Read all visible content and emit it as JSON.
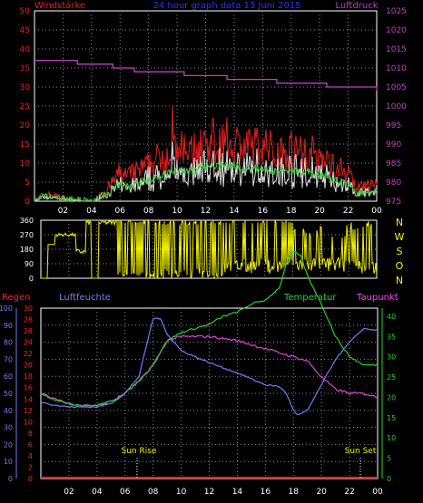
{
  "colors": {
    "bg": "#000000",
    "grid": "#8a8a8a",
    "axis": "#ffffff",
    "wind_max": "#e02020",
    "wind_avg": "#e0e0e0",
    "wind_mean": "#40d040",
    "pressure": "#c040c0",
    "winddir": "#f0f000",
    "humidity": "#7878f8",
    "temperature": "#28d028",
    "dewpoint": "#e040e0",
    "rain": "#ff2020"
  },
  "top": {
    "title_left": "Windstärke",
    "title_center": "24 hour graph data  13 Juni 2015",
    "title_right": "Luftdruck"
  },
  "dir_labels": [
    "N",
    "W",
    "S",
    "O",
    "N"
  ],
  "bottom": {
    "label_regen": "Regen",
    "label_luftfeuchte": "Luftfeuchte",
    "label_temperatur": "Temperatur",
    "label_taupunkt": "Taupunkt",
    "sunrise": "Sun Rise",
    "sunset": "Sun Set"
  },
  "chart_data": [
    {
      "type": "line",
      "name": "wind-pressure",
      "x_ticks": [
        "02",
        "04",
        "06",
        "08",
        "10",
        "12",
        "14",
        "16",
        "18",
        "20",
        "22",
        "00"
      ],
      "y_left_ticks": [
        "0",
        "5",
        "10",
        "15",
        "20",
        "25",
        "30",
        "35",
        "40",
        "45",
        "50"
      ],
      "y_left_range": [
        0,
        50
      ],
      "y_right_ticks": [
        "975",
        "980",
        "985",
        "990",
        "995",
        "1000",
        "1005",
        "1010",
        "1015",
        "1020",
        "1025"
      ],
      "y_right_range": [
        975,
        1025
      ],
      "pressure_series": {
        "x": [
          0,
          3,
          5.5,
          6.8,
          7,
          9,
          10.5,
          12,
          13.5,
          15,
          17,
          19,
          20.5,
          22.5,
          24
        ],
        "y": [
          1012,
          1011,
          1010,
          1010,
          1009,
          1009,
          1008,
          1008,
          1007,
          1007,
          1006,
          1006,
          1005,
          1005,
          1004
        ]
      },
      "wind_max_profile": {
        "x": [
          0,
          0.6,
          1,
          3.5,
          4.3,
          4.5,
          5,
          6,
          6.5,
          8,
          9,
          10,
          11,
          12,
          13,
          14,
          15,
          16,
          17,
          18,
          19,
          20,
          21,
          22,
          22.5,
          23,
          24
        ],
        "y": [
          0,
          2,
          2,
          0,
          0,
          2,
          3,
          8,
          7,
          10,
          13,
          15,
          14,
          17,
          17,
          17,
          15,
          16,
          14,
          15,
          14,
          13,
          10,
          8,
          4,
          4,
          5
        ]
      }
    },
    {
      "type": "line",
      "name": "wind-direction",
      "y_ticks": [
        "360",
        "270",
        "180",
        "90",
        "0"
      ],
      "y_range": [
        0,
        360
      ]
    },
    {
      "type": "line",
      "name": "humidity-temperature",
      "x_ticks": [
        "02",
        "04",
        "06",
        "08",
        "10",
        "12",
        "14",
        "16",
        "18",
        "20",
        "22",
        "00"
      ],
      "y_humidity_ticks": [
        "0",
        "10",
        "20",
        "30",
        "40",
        "50",
        "60",
        "70",
        "80",
        "90",
        "100"
      ],
      "y_humidity_range": [
        0,
        100
      ],
      "y_rain_ticks": [
        "0",
        "2",
        "4",
        "6",
        "8",
        "10",
        "12",
        "14",
        "16",
        "18",
        "20",
        "22",
        "24",
        "26",
        "28",
        "30"
      ],
      "y_rain_range": [
        0,
        30
      ],
      "y_temp_ticks": [
        "0",
        "5",
        "10",
        "15",
        "20",
        "25",
        "30",
        "35",
        "40"
      ],
      "y_temp_range": [
        0,
        42
      ],
      "humidity": {
        "x": [
          0,
          1,
          2,
          3,
          4,
          5,
          6,
          7,
          8,
          8.5,
          9,
          10,
          12,
          14,
          16,
          17,
          17.5,
          18,
          18.3,
          19,
          20,
          21,
          22,
          23,
          24
        ],
        "y": [
          45,
          43,
          42,
          42,
          42,
          44,
          50,
          60,
          94,
          94,
          85,
          75,
          68,
          62,
          55,
          54,
          50,
          40,
          37,
          40,
          55,
          70,
          80,
          88,
          87
        ]
      },
      "temperature": {
        "x": [
          0,
          1,
          2,
          3,
          4,
          5,
          6,
          7,
          8,
          9,
          10,
          11,
          12,
          13,
          14,
          15,
          16,
          17,
          17.6,
          18,
          18.5,
          19,
          20,
          21,
          22,
          23,
          24
        ],
        "y": [
          21,
          19.5,
          18.5,
          18,
          18,
          19,
          21,
          24,
          28,
          34,
          36,
          37,
          38,
          40,
          41,
          43,
          44,
          47,
          54,
          56,
          55,
          50,
          43,
          35,
          30,
          28,
          28
        ]
      },
      "dewpoint": {
        "x": [
          0,
          1,
          2,
          3,
          4,
          5,
          6,
          7,
          8,
          9,
          10,
          12,
          14,
          16,
          17,
          18,
          19,
          20,
          21,
          22,
          23,
          24
        ],
        "y": [
          21,
          19.5,
          18.5,
          18,
          18,
          19,
          21,
          24,
          28,
          34,
          35,
          35,
          34,
          32,
          31,
          30,
          29,
          25,
          22,
          21,
          21,
          20
        ]
      }
    }
  ]
}
